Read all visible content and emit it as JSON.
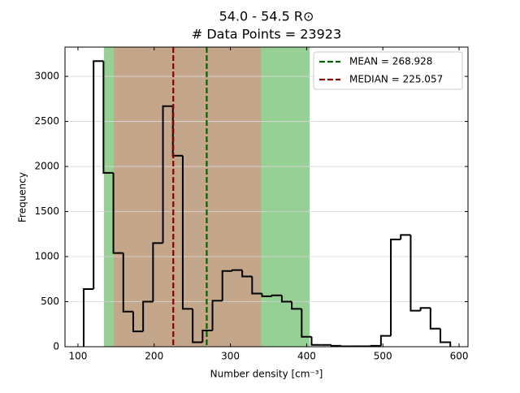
{
  "chart_data": {
    "type": "histogram",
    "title": "54.0 - 54.5 R⊙",
    "subtitle": "# Data Points = 23923",
    "x_label": "Number density [cm⁻³]",
    "y_label": "Frequency",
    "bins": [
      107.5,
      120.5,
      133.5,
      146.5,
      159.5,
      172.5,
      185.5,
      198.5,
      211.5,
      224.5,
      237.5,
      250.5,
      263.5,
      276.5,
      289.5,
      302.5,
      315.5,
      328.5,
      341.5,
      354.5,
      367.5,
      380.5,
      393.5,
      406.5,
      419.5,
      432.5,
      445.5,
      458.5,
      471.5,
      484.5,
      497.5,
      510.5,
      523.5,
      536.5,
      549.5,
      562.5,
      575.5,
      588.5
    ],
    "values": [
      640,
      3170,
      1930,
      1040,
      390,
      170,
      500,
      1150,
      2670,
      2120,
      420,
      50,
      180,
      510,
      840,
      850,
      780,
      590,
      560,
      570,
      500,
      420,
      110,
      20,
      20,
      10,
      5,
      5,
      5,
      10,
      120,
      1190,
      1240,
      400,
      430,
      200,
      50
    ],
    "color": "#000000",
    "spans": [
      {
        "range": [
          134,
          404
        ],
        "color": "#97d094"
      },
      {
        "range": [
          147,
          340
        ],
        "color": "#c4a68a"
      }
    ],
    "lines": [
      {
        "name": "MEAN = 268.928",
        "value": 268.928,
        "color": "#006400"
      },
      {
        "name": "MEDIAN = 225.057",
        "value": 225.057,
        "color": "#8b0000"
      }
    ],
    "xlim": [
      83,
      611.7
    ],
    "ylim": [
      0,
      3325
    ],
    "xticks": [
      100,
      200,
      300,
      400,
      500,
      600
    ],
    "yticks": [
      0,
      500,
      1000,
      1500,
      2000,
      2500,
      3000
    ],
    "grid": true,
    "legend": "upper right"
  }
}
